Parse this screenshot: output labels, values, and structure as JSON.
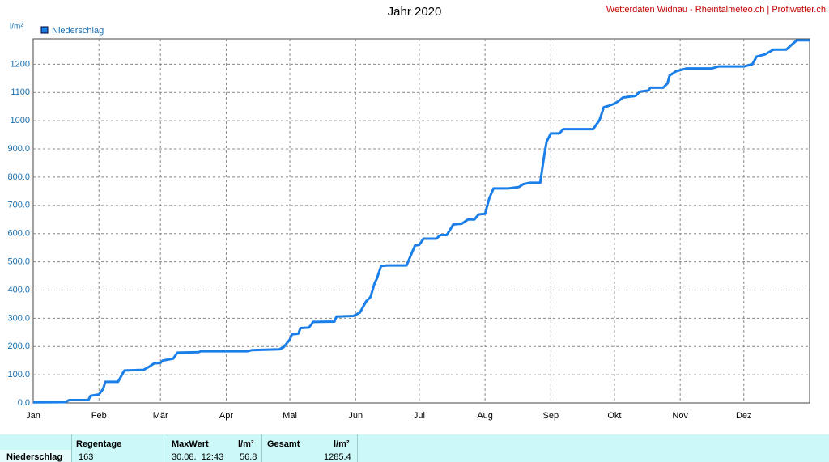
{
  "chart_data": {
    "type": "line",
    "title": "Jahr 2020",
    "source": "Wetterdaten Widnau - Rheintalmeteo.ch | Profiwetter.ch",
    "y_label": "l/m²",
    "x": [
      0,
      15,
      17,
      26,
      27,
      31,
      33,
      34,
      40,
      43,
      52,
      55,
      57,
      60,
      61,
      66,
      68,
      78,
      79,
      101,
      103,
      116,
      118,
      121,
      122,
      125,
      126,
      130,
      132,
      142,
      143,
      151,
      154,
      157,
      159,
      161,
      162,
      164,
      167,
      176,
      180,
      182,
      184,
      190,
      192,
      195,
      198,
      202,
      205,
      208,
      210,
      213,
      215,
      217,
      224,
      229,
      231,
      234,
      239,
      241,
      242,
      244,
      248,
      250,
      264,
      267,
      269,
      271,
      274,
      276,
      278,
      284,
      286,
      290,
      291,
      297,
      299,
      300,
      303,
      308,
      320,
      323,
      335,
      339,
      341,
      345,
      349,
      355,
      358,
      360,
      366
    ],
    "series": [
      {
        "name": "Niederschlag",
        "color": "#1a7fe8",
        "values": [
          2,
          3,
          10,
          10,
          25,
          30,
          50,
          75,
          75,
          115,
          117,
          130,
          140,
          142,
          150,
          157,
          178,
          180,
          183,
          183,
          187,
          190,
          197,
          225,
          243,
          245,
          265,
          267,
          287,
          288,
          306,
          308,
          320,
          360,
          375,
          425,
          440,
          485,
          487,
          487,
          558,
          560,
          582,
          582,
          595,
          595,
          632,
          635,
          650,
          650,
          668,
          670,
          725,
          760,
          760,
          765,
          775,
          780,
          780,
          882,
          925,
          955,
          955,
          970,
          970,
          1003,
          1048,
          1052,
          1060,
          1070,
          1082,
          1088,
          1103,
          1107,
          1117,
          1117,
          1132,
          1160,
          1175,
          1185,
          1185,
          1192,
          1192,
          1200,
          1227,
          1235,
          1252,
          1252,
          1272,
          1285,
          1285
        ]
      }
    ],
    "xlim": [
      0,
      366
    ],
    "xticks": [
      {
        "value": 0,
        "label": "Jan"
      },
      {
        "value": 31,
        "label": "Feb"
      },
      {
        "value": 60,
        "label": "Mär"
      },
      {
        "value": 91,
        "label": "Apr"
      },
      {
        "value": 121,
        "label": "Mai"
      },
      {
        "value": 152,
        "label": "Jun"
      },
      {
        "value": 182,
        "label": "Jul"
      },
      {
        "value": 213,
        "label": "Aug"
      },
      {
        "value": 244,
        "label": "Sep"
      },
      {
        "value": 274,
        "label": "Okt"
      },
      {
        "value": 305,
        "label": "Nov"
      },
      {
        "value": 335,
        "label": "Dez"
      }
    ],
    "ylim": [
      0,
      1290
    ],
    "yticks": [
      {
        "value": 0,
        "label": "0.0"
      },
      {
        "value": 100,
        "label": "100.0"
      },
      {
        "value": 200,
        "label": "200.0"
      },
      {
        "value": 300,
        "label": "300.0"
      },
      {
        "value": 400,
        "label": "400.0"
      },
      {
        "value": 500,
        "label": "500.0"
      },
      {
        "value": 600,
        "label": "600.0"
      },
      {
        "value": 700,
        "label": "700.0"
      },
      {
        "value": 800,
        "label": "800.0"
      },
      {
        "value": 900,
        "label": "900.0"
      },
      {
        "value": 1000,
        "label": "1000"
      },
      {
        "value": 1100,
        "label": "1100"
      },
      {
        "value": 1200,
        "label": "1200"
      }
    ],
    "grid": true
  },
  "table": {
    "headers": [
      "Regentage",
      "MaxWert",
      "l/m²",
      "Gesamt",
      "l/m²"
    ],
    "row": [
      "Niederschlag",
      163,
      "30.08.  12:43",
      56.8,
      1285.4
    ]
  }
}
